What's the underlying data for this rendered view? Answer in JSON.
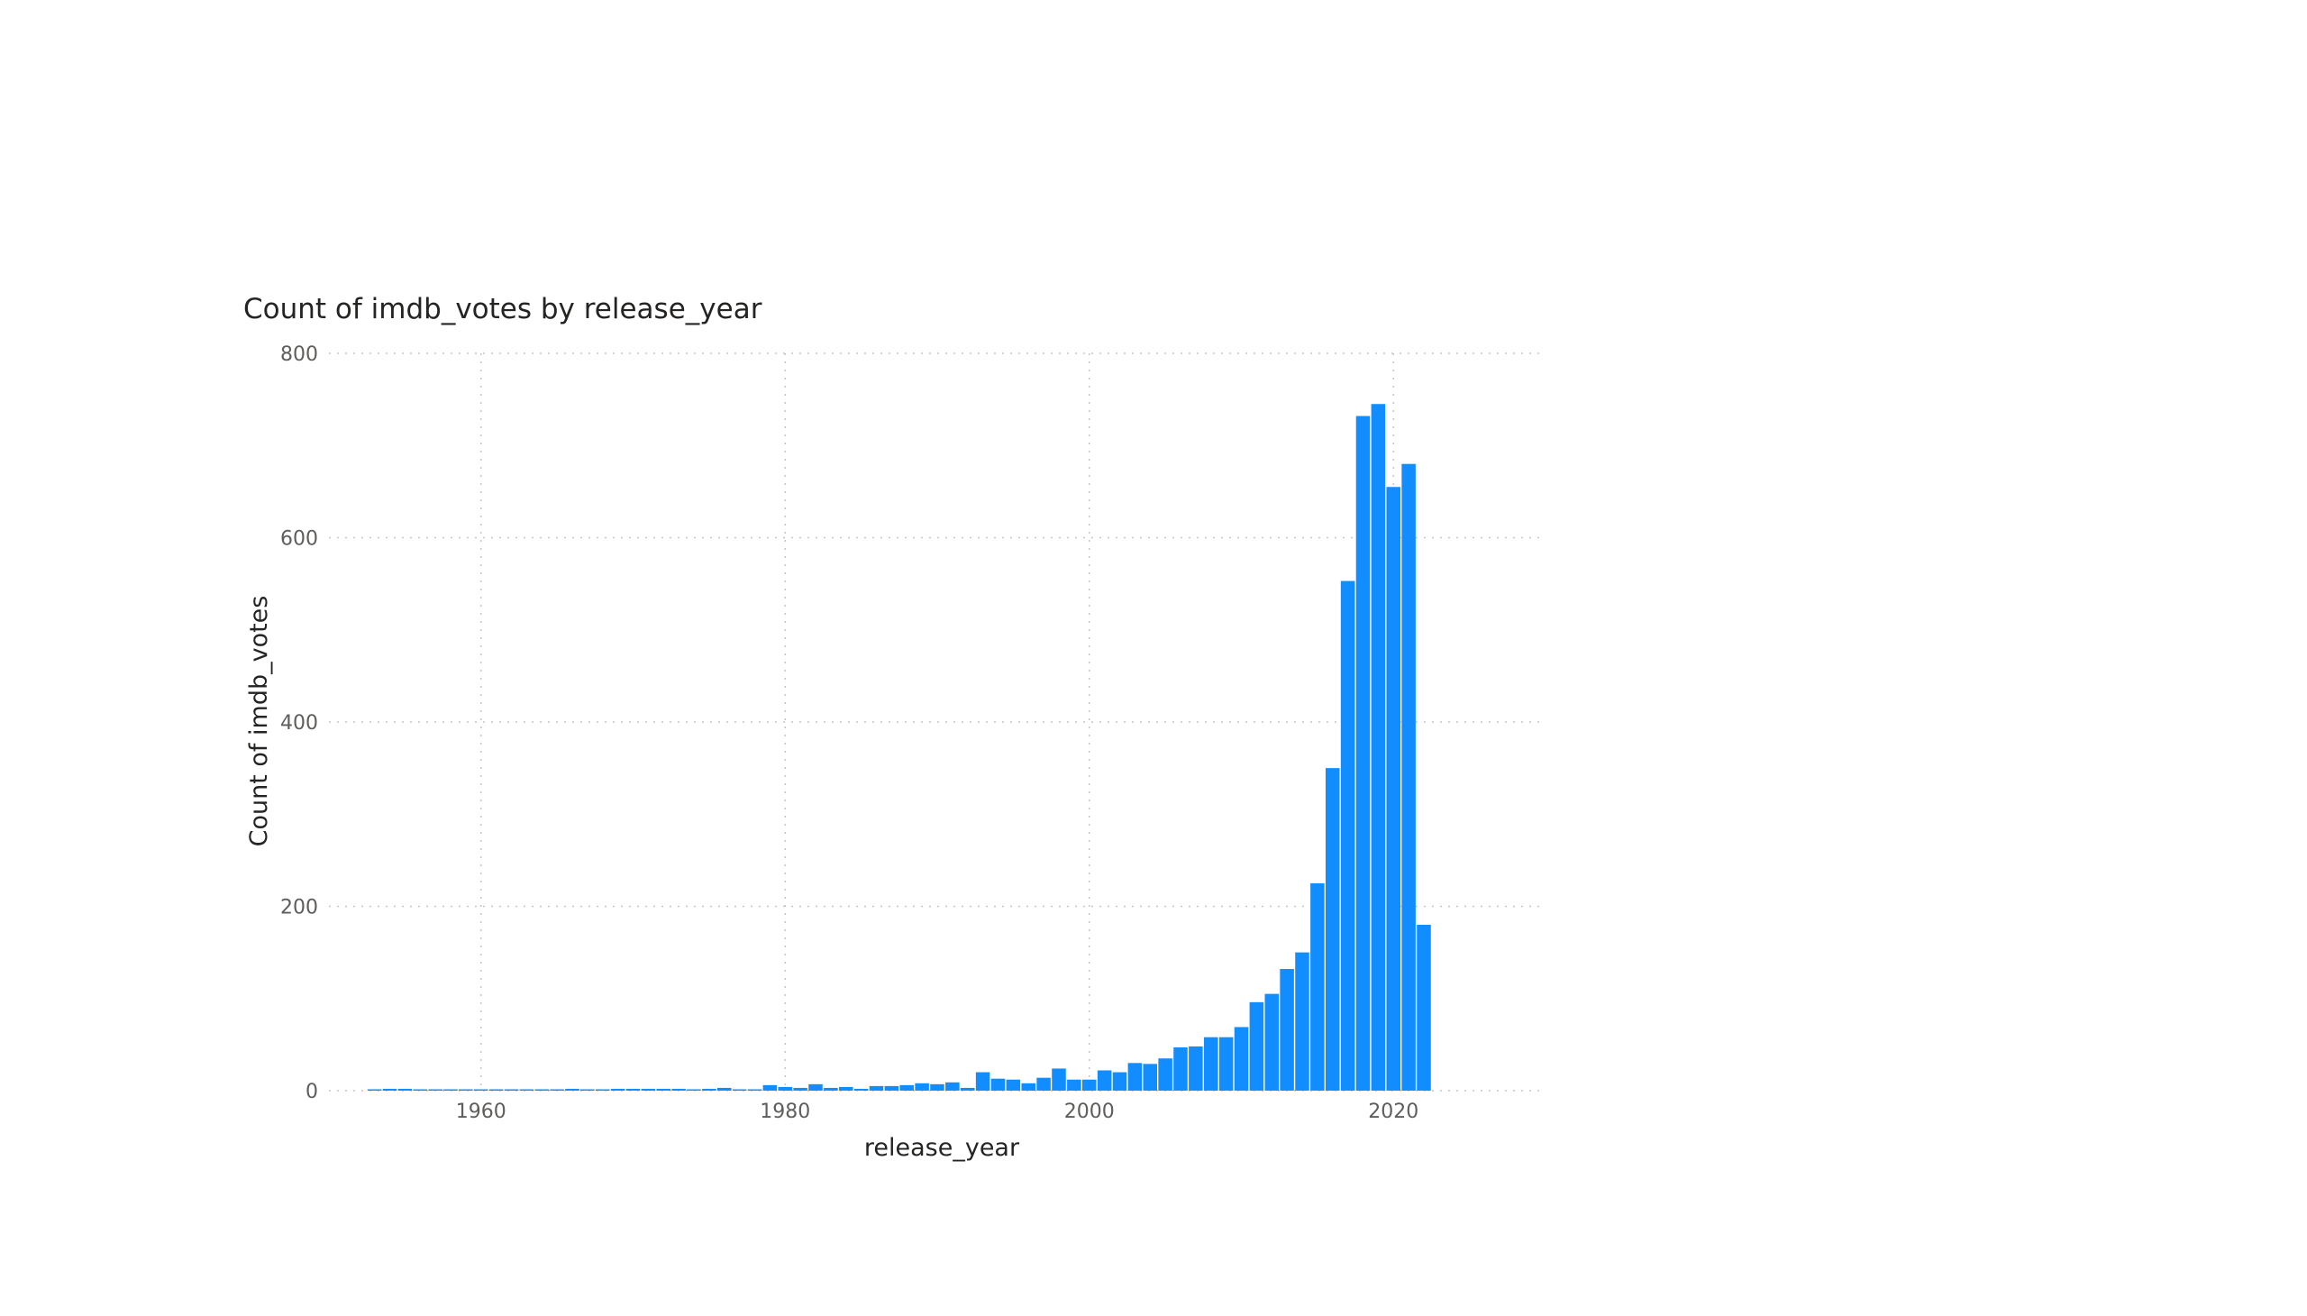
{
  "chart_data": {
    "type": "bar",
    "title": "Count of imdb_votes by release_year",
    "xlabel": "release_year",
    "ylabel": "Count of imdb_votes",
    "xlim": [
      1950,
      2030
    ],
    "ylim": [
      0,
      800
    ],
    "x_ticks": [
      "1960",
      "1980",
      "2000",
      "2020"
    ],
    "y_ticks": [
      "0",
      "200",
      "400",
      "600",
      "800"
    ],
    "grid": true,
    "color": "#118DFF",
    "x": [
      1953,
      1954,
      1955,
      1956,
      1957,
      1958,
      1959,
      1960,
      1961,
      1962,
      1963,
      1964,
      1965,
      1966,
      1967,
      1968,
      1969,
      1970,
      1971,
      1972,
      1973,
      1974,
      1975,
      1976,
      1977,
      1978,
      1979,
      1980,
      1981,
      1982,
      1983,
      1984,
      1985,
      1986,
      1987,
      1988,
      1989,
      1990,
      1991,
      1992,
      1993,
      1994,
      1995,
      1996,
      1997,
      1998,
      1999,
      2000,
      2001,
      2002,
      2003,
      2004,
      2005,
      2006,
      2007,
      2008,
      2009,
      2010,
      2011,
      2012,
      2013,
      2014,
      2015,
      2016,
      2017,
      2018,
      2019,
      2020,
      2021,
      2022
    ],
    "values": [
      1,
      2,
      2,
      1,
      1,
      1,
      1,
      1,
      1,
      1,
      1,
      1,
      1,
      2,
      1,
      1,
      2,
      2,
      2,
      2,
      2,
      1,
      2,
      3,
      1,
      1,
      6,
      4,
      3,
      7,
      3,
      4,
      2,
      5,
      5,
      6,
      8,
      7,
      9,
      3,
      20,
      13,
      12,
      8,
      14,
      24,
      12,
      12,
      22,
      20,
      30,
      29,
      35,
      47,
      48,
      58,
      58,
      69,
      96,
      105,
      132,
      150,
      225,
      350,
      553,
      732,
      745,
      655,
      680,
      180
    ]
  }
}
